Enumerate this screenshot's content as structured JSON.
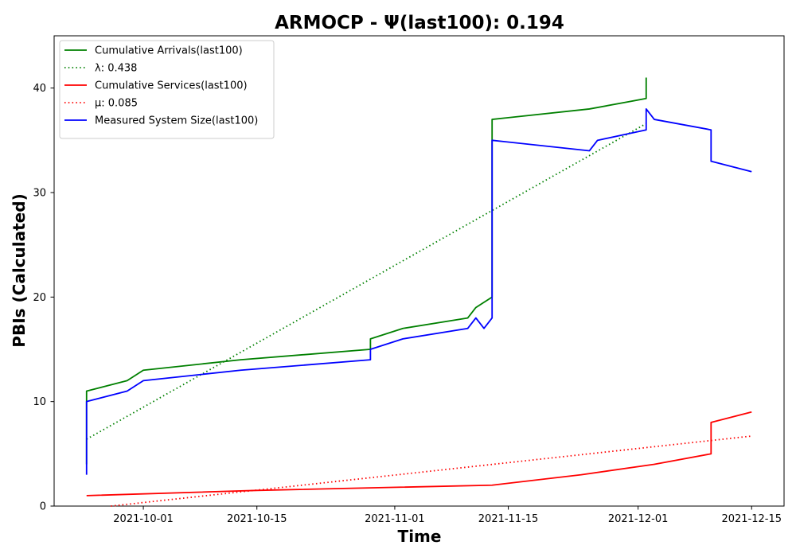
{
  "chart_data": {
    "type": "line",
    "title": "ARMOCP -  Ψ(last100): 0.194",
    "xlabel": "Time",
    "ylabel": "PBIs (Calculated)",
    "x_is_date": true,
    "xlim": [
      "2021-09-20",
      "2021-12-19"
    ],
    "ylim": [
      0,
      45
    ],
    "xticks": [
      "2021-10-01",
      "2021-10-15",
      "2021-11-01",
      "2021-11-15",
      "2021-12-01",
      "2021-12-15"
    ],
    "yticks": [
      0,
      10,
      20,
      30,
      40
    ],
    "grid": false,
    "legend_position": "upper-left",
    "series": [
      {
        "name": "Cumulative Arrivals(last100)",
        "color": "#008000",
        "style": "solid",
        "points": [
          [
            "2021-09-24",
            4
          ],
          [
            "2021-09-24",
            11
          ],
          [
            "2021-09-29",
            12
          ],
          [
            "2021-10-01",
            13
          ],
          [
            "2021-10-13",
            14
          ],
          [
            "2021-10-29",
            15
          ],
          [
            "2021-10-29",
            16
          ],
          [
            "2021-11-02",
            17
          ],
          [
            "2021-11-10",
            18
          ],
          [
            "2021-11-11",
            19
          ],
          [
            "2021-11-13",
            20
          ],
          [
            "2021-11-13",
            32
          ],
          [
            "2021-11-13",
            37
          ],
          [
            "2021-11-25",
            38
          ],
          [
            "2021-12-02",
            39
          ],
          [
            "2021-12-02",
            41
          ]
        ]
      },
      {
        "name": "λ: 0.438",
        "color": "#008000",
        "style": "dotted",
        "points": [
          [
            "2021-09-24",
            6.4
          ],
          [
            "2021-12-02",
            36.6
          ]
        ]
      },
      {
        "name": "Cumulative Services(last100)",
        "color": "#ff0000",
        "style": "solid",
        "points": [
          [
            "2021-09-24",
            1
          ],
          [
            "2021-10-15",
            1.5
          ],
          [
            "2021-11-13",
            2
          ],
          [
            "2021-11-24",
            3
          ],
          [
            "2021-12-03",
            4
          ],
          [
            "2021-12-10",
            5
          ],
          [
            "2021-12-10",
            8
          ],
          [
            "2021-12-15",
            9
          ]
        ]
      },
      {
        "name": "μ: 0.085",
        "color": "#ff0000",
        "style": "dotted",
        "points": [
          [
            "2021-09-27",
            0
          ],
          [
            "2021-12-15",
            6.7
          ]
        ]
      },
      {
        "name": "Measured System Size(last100)",
        "color": "#0000ff",
        "style": "solid",
        "points": [
          [
            "2021-09-24",
            3
          ],
          [
            "2021-09-24",
            10
          ],
          [
            "2021-09-29",
            11
          ],
          [
            "2021-10-01",
            12
          ],
          [
            "2021-10-13",
            13
          ],
          [
            "2021-10-29",
            14
          ],
          [
            "2021-10-29",
            15
          ],
          [
            "2021-11-02",
            16
          ],
          [
            "2021-11-10",
            17
          ],
          [
            "2021-11-11",
            18
          ],
          [
            "2021-11-12",
            17
          ],
          [
            "2021-11-13",
            18
          ],
          [
            "2021-11-13",
            30
          ],
          [
            "2021-11-13",
            35
          ],
          [
            "2021-11-25",
            34
          ],
          [
            "2021-11-26",
            35
          ],
          [
            "2021-12-02",
            36
          ],
          [
            "2021-12-02",
            38
          ],
          [
            "2021-12-03",
            37
          ],
          [
            "2021-12-10",
            36
          ],
          [
            "2021-12-10",
            33
          ],
          [
            "2021-12-15",
            32
          ]
        ]
      }
    ]
  }
}
